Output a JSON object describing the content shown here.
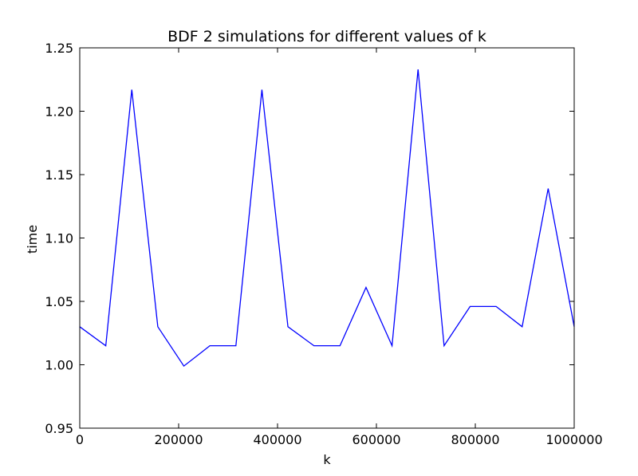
{
  "chart_data": {
    "type": "line",
    "title": "BDF 2 simulations for different values of k",
    "xlabel": "k",
    "ylabel": "time",
    "xlim": [
      0,
      1000000
    ],
    "ylim": [
      0.95,
      1.25
    ],
    "grid": false,
    "x_ticks": [
      "0",
      "200000",
      "400000",
      "600000",
      "800000",
      "1000000"
    ],
    "y_ticks": [
      "0.95",
      "1.00",
      "1.05",
      "1.10",
      "1.15",
      "1.20",
      "1.25"
    ],
    "x_tick_values": [
      0,
      200000,
      400000,
      600000,
      800000,
      1000000
    ],
    "y_tick_values": [
      0.95,
      1.0,
      1.05,
      1.1,
      1.15,
      1.2,
      1.25
    ],
    "series": [
      {
        "color": "#0000ff",
        "x": [
          0,
          52632,
          105263,
          157895,
          210526,
          263158,
          315789,
          368421,
          421053,
          473684,
          526316,
          578947,
          631579,
          684211,
          736842,
          789474,
          842105,
          894737,
          947368,
          1000000
        ],
        "y": [
          1.03,
          1.015,
          1.217,
          1.03,
          0.999,
          1.015,
          1.015,
          1.217,
          1.03,
          1.015,
          1.015,
          1.061,
          1.015,
          1.233,
          1.015,
          1.046,
          1.046,
          1.03,
          1.139,
          1.03
        ]
      }
    ]
  }
}
